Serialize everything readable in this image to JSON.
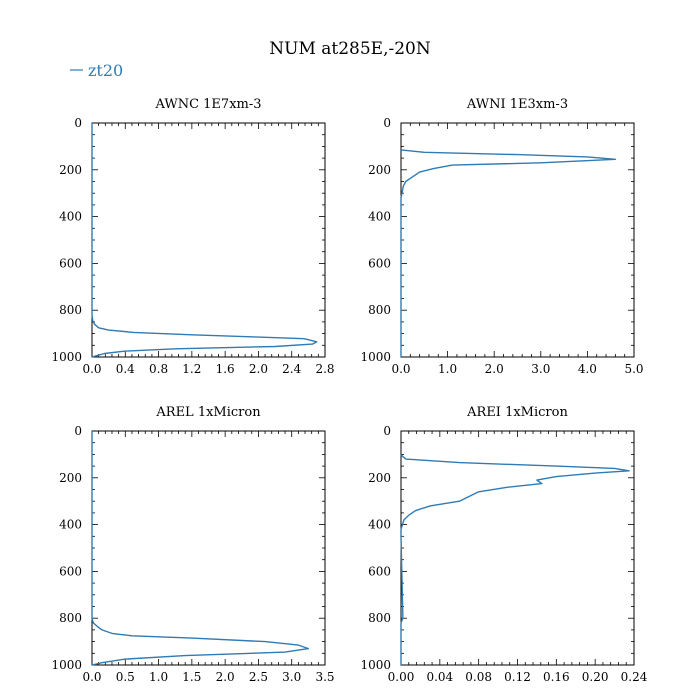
{
  "figure": {
    "title": "NUM at285E,-20N",
    "legend": {
      "label": "zt20",
      "color": "#2f7bb5"
    }
  },
  "chart_data": [
    {
      "type": "line",
      "title": "AWNC  1E7xm-3",
      "xlim": [
        0,
        2.8
      ],
      "ylim": [
        1000,
        0
      ],
      "x_ticks": [
        "0.0",
        "0.4",
        "0.8",
        "1.2",
        "1.6",
        "2.0",
        "2.4",
        "2.8"
      ],
      "y_ticks": [
        "0",
        "200",
        "400",
        "600",
        "800",
        "1000"
      ],
      "series": [
        {
          "name": "zt20",
          "x": [
            0,
            0,
            0.01,
            0.03,
            0.08,
            0.2,
            0.5,
            1.2,
            2.0,
            2.55,
            2.7,
            2.65,
            2.2,
            1.0,
            0.4,
            0.15,
            0.05,
            0
          ],
          "y": [
            0,
            820,
            845,
            860,
            875,
            885,
            895,
            905,
            915,
            922,
            935,
            945,
            955,
            965,
            975,
            985,
            995,
            1000
          ]
        }
      ]
    },
    {
      "type": "line",
      "title": "AWNI  1E3xm-3",
      "xlim": [
        0,
        5
      ],
      "ylim": [
        1000,
        0
      ],
      "x_ticks": [
        "0.0",
        "1.0",
        "2.0",
        "3.0",
        "4.0",
        "5.0"
      ],
      "y_ticks": [
        "0",
        "200",
        "400",
        "600",
        "800",
        "1000"
      ],
      "series": [
        {
          "name": "zt20",
          "x": [
            0,
            0.5,
            2.5,
            4.0,
            4.6,
            3.0,
            1.1,
            0.7,
            0.4,
            0.25,
            0.1,
            0.05,
            0.02,
            0,
            0
          ],
          "y": [
            115,
            125,
            135,
            145,
            155,
            170,
            180,
            195,
            210,
            230,
            250,
            270,
            300,
            320,
            1000
          ]
        }
      ]
    },
    {
      "type": "line",
      "title": "AREL  1xMicron",
      "xlim": [
        0,
        3.5
      ],
      "ylim": [
        1000,
        0
      ],
      "x_ticks": [
        "0.0",
        "0.5",
        "1.0",
        "1.5",
        "2.0",
        "2.5",
        "3.0",
        "3.5"
      ],
      "y_ticks": [
        "0",
        "200",
        "400",
        "600",
        "800",
        "1000"
      ],
      "series": [
        {
          "name": "zt20",
          "x": [
            0,
            0,
            0.02,
            0.08,
            0.15,
            0.3,
            0.6,
            1.5,
            2.6,
            3.1,
            3.25,
            2.9,
            1.4,
            0.5,
            0.15,
            0
          ],
          "y": [
            0,
            800,
            820,
            835,
            850,
            865,
            875,
            885,
            900,
            915,
            930,
            945,
            960,
            975,
            990,
            1000
          ]
        }
      ]
    },
    {
      "type": "line",
      "title": "AREI  1xMicron",
      "xlim": [
        0,
        0.24
      ],
      "ylim": [
        1000,
        0
      ],
      "x_ticks": [
        "0.00",
        "0.04",
        "0.08",
        "0.12",
        "0.16",
        "0.20",
        "0.24"
      ],
      "y_ticks": [
        "0",
        "200",
        "400",
        "600",
        "800",
        "1000"
      ],
      "series": [
        {
          "name": "zt20",
          "x": [
            0,
            0.002,
            0.005,
            0.06,
            0.16,
            0.22,
            0.235,
            0.2,
            0.16,
            0.14,
            0.145,
            0.11,
            0.08,
            0.07,
            0.06,
            0.03,
            0.015,
            0.008,
            0.003,
            0,
            0,
            0.002,
            0,
            0
          ],
          "y": [
            100,
            110,
            120,
            135,
            150,
            160,
            170,
            180,
            195,
            210,
            225,
            240,
            260,
            280,
            300,
            320,
            340,
            360,
            380,
            420,
            450,
            800,
            820,
            1000
          ]
        }
      ]
    }
  ]
}
